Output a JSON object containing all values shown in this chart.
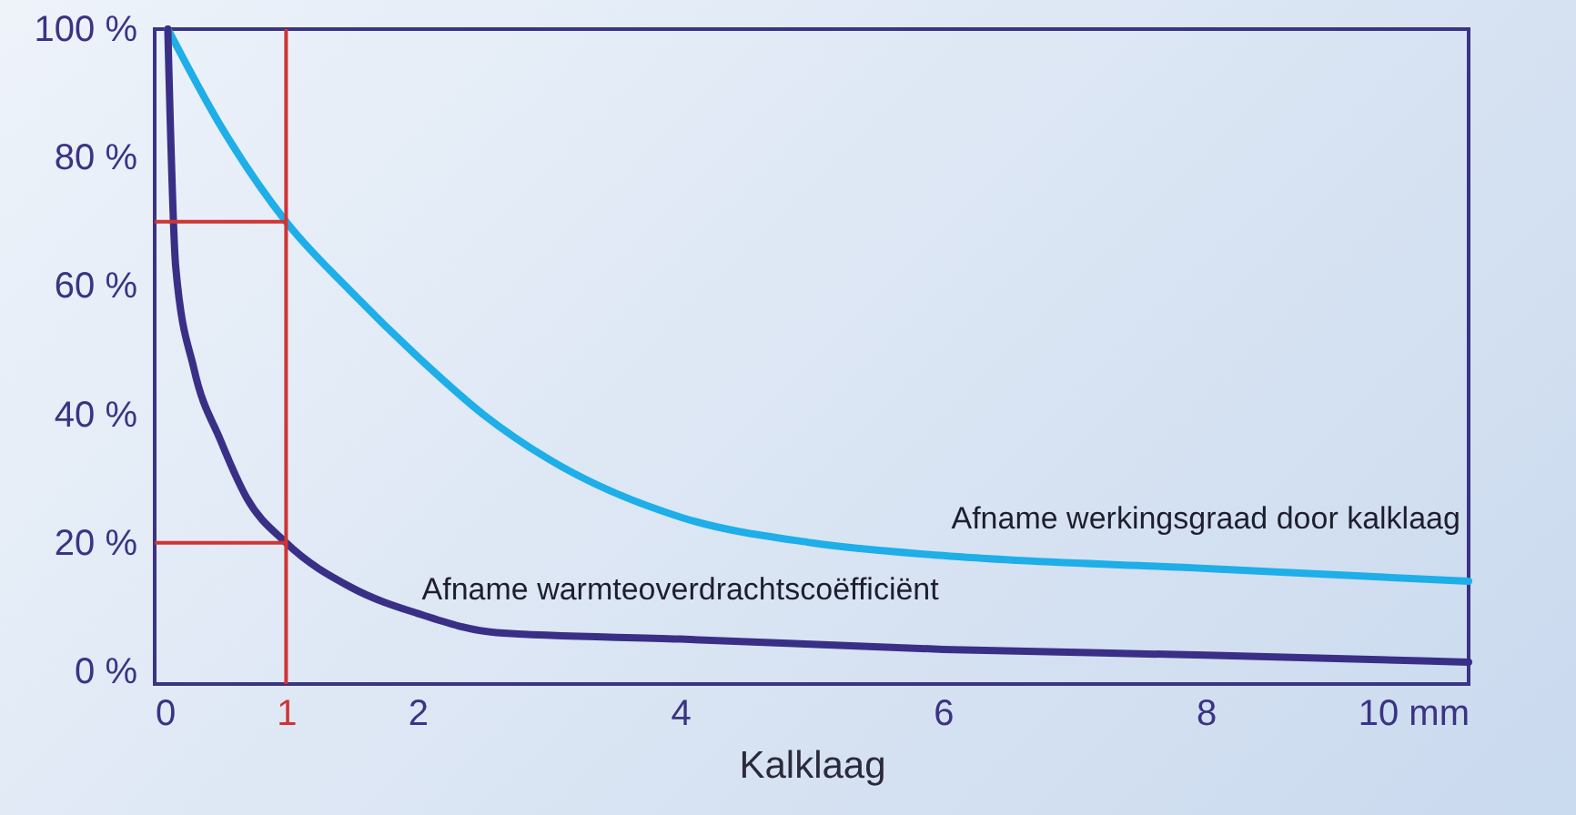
{
  "chart_data": {
    "type": "line",
    "xlabel": "Kalklaag",
    "xlim": [
      0,
      10
    ],
    "ylim": [
      -2,
      100
    ],
    "xticks": [
      0,
      1,
      2,
      4,
      6,
      8,
      {
        "value": 10,
        "label": "10 mm"
      }
    ],
    "yticks": [
      {
        "value": 0,
        "label": "0 %"
      },
      {
        "value": 20,
        "label": "20 %"
      },
      {
        "value": 40,
        "label": "40 %"
      },
      {
        "value": 60,
        "label": "60 %"
      },
      {
        "value": 80,
        "label": "80 %"
      },
      {
        "value": 100,
        "label": "100 %"
      }
    ],
    "grid": false,
    "marker": "none",
    "line_style": "solid",
    "series": [
      {
        "name": "Afname werkingsgraad door kalklaag",
        "color": "#1eaee8",
        "x": [
          0.1,
          0.5,
          1,
          1.5,
          2,
          2.5,
          3,
          4,
          5,
          6,
          8,
          10
        ],
        "values": [
          100,
          85,
          70,
          59,
          49,
          40,
          33,
          24,
          20,
          18,
          16,
          14
        ]
      },
      {
        "name": "Afname warmteoverdrachtscoëfficiënt",
        "color": "#3a2f86",
        "x": [
          0.1,
          0.16,
          0.3,
          0.5,
          0.7,
          1,
          1.5,
          2,
          2.6,
          4,
          6,
          8,
          10
        ],
        "values": [
          100,
          63,
          47,
          36,
          27,
          20,
          13,
          9,
          6,
          5,
          3.4,
          2.5,
          1.4
        ]
      }
    ],
    "ref_lines": [
      {
        "axis": "x",
        "value": 1,
        "color": "#d03434"
      },
      {
        "axis": "y",
        "value": 70,
        "color": "#d03434"
      },
      {
        "axis": "y",
        "value": 20,
        "color": "#d03434"
      }
    ]
  }
}
